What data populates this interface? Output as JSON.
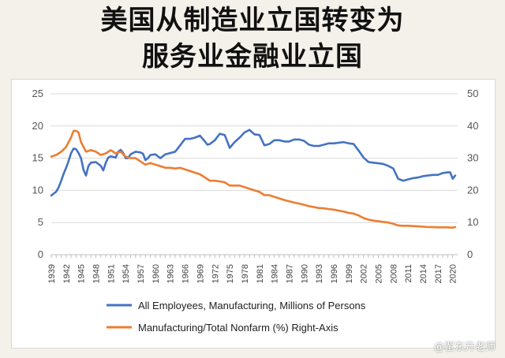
{
  "title_line1": "美国从制造业立国转变为",
  "title_line2": "服务业金融业立国",
  "watermark": "@翟东升老师",
  "colors": {
    "employees": "#4472c4",
    "share": "#ed7d31"
  },
  "chart_data": {
    "type": "line",
    "title": "美国从制造业立国转变为服务业金融业立国",
    "xlim": [
      1939,
      2021
    ],
    "ylim_left": [
      0,
      25
    ],
    "ylim_right": [
      0,
      50
    ],
    "left_ticks": [
      "25",
      "20",
      "15",
      "10",
      "5",
      "0"
    ],
    "right_ticks": [
      "50",
      "40",
      "30",
      "20",
      "10",
      "0"
    ],
    "x_tick_labels": [
      "1939",
      "1942",
      "1945",
      "1948",
      "1951",
      "1954",
      "1957",
      "1960",
      "1963",
      "1966",
      "1969",
      "1972",
      "1975",
      "1978",
      "1981",
      "1984",
      "1987",
      "1990",
      "1993",
      "1996",
      "1999",
      "2002",
      "2005",
      "2008",
      "2011",
      "2014",
      "2017",
      "2020"
    ],
    "series": [
      {
        "name": "All Employees, Manufacturing, Millions of Persons",
        "axis": "left",
        "x": [
          1939,
          1939.5,
          1940,
          1940.5,
          1941,
          1941.5,
          1942,
          1942.5,
          1943,
          1943.5,
          1944,
          1944.5,
          1945,
          1945.5,
          1946,
          1946.5,
          1947,
          1948,
          1949,
          1949.5,
          1950,
          1950.5,
          1951,
          1952,
          1952.5,
          1953,
          1953.5,
          1954,
          1954.5,
          1955,
          1956,
          1957,
          1957.5,
          1958,
          1958.5,
          1959,
          1960,
          1961,
          1962,
          1963,
          1964,
          1965,
          1966,
          1967,
          1968,
          1969,
          1970,
          1970.5,
          1971,
          1972,
          1973,
          1974,
          1974.5,
          1975,
          1976,
          1977,
          1978,
          1979,
          1980,
          1981,
          1982,
          1983,
          1984,
          1985,
          1986,
          1987,
          1988,
          1989,
          1990,
          1991,
          1992,
          1993,
          1994,
          1995,
          1996,
          1997,
          1998,
          1999,
          2000,
          2001,
          2002,
          2003,
          2004,
          2005,
          2006,
          2007,
          2008,
          2009,
          2010,
          2011,
          2012,
          2013,
          2014,
          2015,
          2016,
          2017,
          2018,
          2019,
          2019.5,
          2020,
          2020.5
        ],
        "values": [
          9.2,
          9.5,
          9.8,
          10.5,
          11.5,
          12.6,
          13.5,
          14.6,
          15.8,
          16.5,
          16.4,
          15.8,
          15,
          13.2,
          12.3,
          13.8,
          14.3,
          14.4,
          13.8,
          13.1,
          14.3,
          15.1,
          15.3,
          15.1,
          16,
          16.3,
          15.8,
          15,
          15,
          15.6,
          16,
          15.9,
          15.7,
          14.7,
          15,
          15.5,
          15.6,
          15,
          15.6,
          15.8,
          16,
          17,
          18,
          18,
          18.2,
          18.5,
          17.6,
          17.1,
          17.2,
          17.8,
          18.8,
          18.6,
          17.6,
          16.6,
          17.5,
          18.2,
          19,
          19.4,
          18.7,
          18.6,
          17,
          17.2,
          17.8,
          17.8,
          17.6,
          17.6,
          17.9,
          17.9,
          17.7,
          17.1,
          16.9,
          16.9,
          17.1,
          17.3,
          17.3,
          17.4,
          17.5,
          17.3,
          17.2,
          16.2,
          15.1,
          14.4,
          14.3,
          14.2,
          14.1,
          13.8,
          13.4,
          11.8,
          11.5,
          11.7,
          11.9,
          12,
          12.2,
          12.3,
          12.4,
          12.4,
          12.7,
          12.8,
          12.8,
          11.8,
          12.3
        ]
      },
      {
        "name": "Manufacturing/Total Nonfarm (%) Right-Axis",
        "axis": "right",
        "x": [
          1939,
          1940,
          1941,
          1942,
          1943,
          1943.5,
          1944,
          1944.5,
          1945,
          1946,
          1947,
          1948,
          1949,
          1950,
          1951,
          1952,
          1953,
          1954,
          1955,
          1956,
          1957,
          1958,
          1959,
          1960,
          1961,
          1962,
          1963,
          1964,
          1965,
          1966,
          1967,
          1968,
          1969,
          1970,
          1971,
          1972,
          1973,
          1974,
          1975,
          1976,
          1977,
          1978,
          1979,
          1980,
          1981,
          1982,
          1983,
          1984,
          1985,
          1986,
          1987,
          1988,
          1989,
          1990,
          1991,
          1992,
          1993,
          1994,
          1995,
          1996,
          1997,
          1998,
          1999,
          2000,
          2001,
          2002,
          2003,
          2004,
          2005,
          2006,
          2007,
          2008,
          2009,
          2010,
          2011,
          2012,
          2013,
          2014,
          2015,
          2016,
          2017,
          2018,
          2019,
          2020,
          2020.5
        ],
        "values": [
          30.5,
          31,
          32,
          33.5,
          36.5,
          38.5,
          38.5,
          38,
          35,
          32,
          32.5,
          32,
          31,
          31.5,
          32.5,
          31.5,
          32,
          30.5,
          30,
          30,
          29,
          28,
          28.5,
          28,
          27.5,
          27,
          27,
          26.8,
          27,
          26.5,
          26,
          25.5,
          25,
          24,
          23,
          23,
          22.8,
          22.5,
          21.5,
          21.5,
          21.5,
          21,
          20.5,
          20,
          19.5,
          18.5,
          18.5,
          18,
          17.5,
          17,
          16.6,
          16.2,
          15.9,
          15.5,
          15.1,
          14.8,
          14.5,
          14.4,
          14.2,
          14,
          13.7,
          13.4,
          13,
          12.8,
          12.2,
          11.4,
          10.9,
          10.6,
          10.4,
          10.2,
          10,
          9.6,
          9.1,
          9,
          9,
          8.9,
          8.8,
          8.7,
          8.6,
          8.6,
          8.5,
          8.5,
          8.5,
          8.4,
          8.6
        ]
      }
    ],
    "legend": [
      "All Employees, Manufacturing, Millions of Persons",
      "Manufacturing/Total Nonfarm (%) Right-Axis"
    ],
    "legend_position": "bottom"
  }
}
